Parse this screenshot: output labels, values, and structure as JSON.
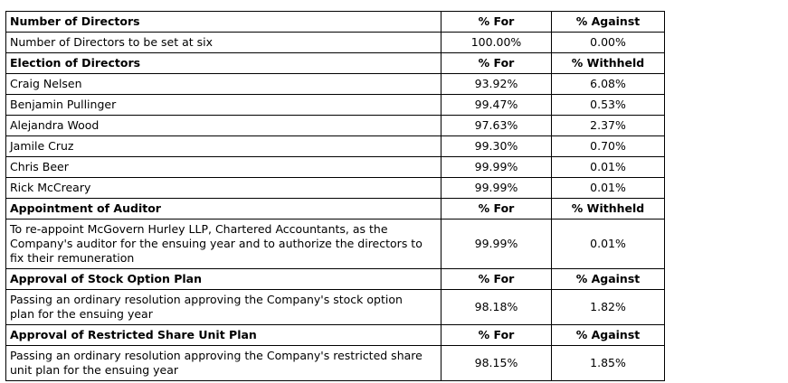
{
  "table": {
    "sections": [
      {
        "header": [
          "Number of Directors",
          "% For",
          "% Against"
        ],
        "rows": [
          [
            "Number of Directors to be set at six",
            "100.00%",
            "0.00%"
          ]
        ]
      },
      {
        "header": [
          "Election of Directors",
          "% For",
          "% Withheld"
        ],
        "rows": [
          [
            "Craig Nelsen",
            "93.92%",
            "6.08%"
          ],
          [
            "Benjamin Pullinger",
            "99.47%",
            "0.53%"
          ],
          [
            "Alejandra Wood",
            "97.63%",
            "2.37%"
          ],
          [
            "Jamile Cruz",
            "99.30%",
            "0.70%"
          ],
          [
            "Chris Beer",
            "99.99%",
            "0.01%"
          ],
          [
            "Rick McCreary",
            "99.99%",
            "0.01%"
          ]
        ]
      },
      {
        "header": [
          "Appointment of Auditor",
          "% For",
          "% Withheld"
        ],
        "rows": [
          [
            "To re-appoint McGovern Hurley LLP, Chartered Accountants, as the Company's auditor for the ensuing year and to authorize the directors to fix their remuneration",
            "99.99%",
            "0.01%"
          ]
        ]
      },
      {
        "header": [
          "Approval of Stock Option Plan",
          "% For",
          "% Against"
        ],
        "rows": [
          [
            "Passing an ordinary resolution approving the Company's stock option plan for the ensuing year",
            "98.18%",
            "1.82%"
          ]
        ]
      },
      {
        "header": [
          "Approval of Restricted Share Unit Plan",
          "% For",
          "% Against"
        ],
        "rows": [
          [
            "Passing an ordinary resolution approving the Company's restricted share unit plan for the ensuing year",
            "98.15%",
            "1.85%"
          ]
        ]
      }
    ]
  }
}
